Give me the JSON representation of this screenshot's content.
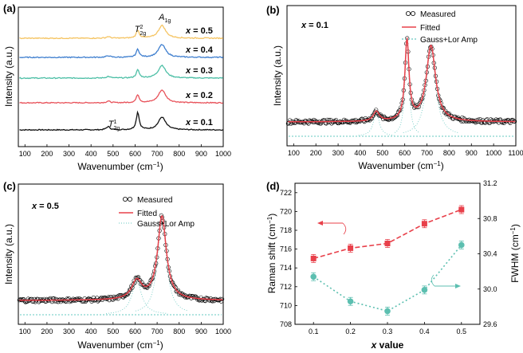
{
  "figure": {
    "background": "#ffffff"
  },
  "chart_data": [
    {
      "type": "line",
      "panel_label": "(a)",
      "xlabel": "Wavenumber (cm",
      "xlabel_sup": "−1",
      "xlabel_close": ")",
      "ylabel": "Intensity (a.u.)",
      "xlim": [
        70,
        1000
      ],
      "xticks": [
        100,
        200,
        300,
        400,
        500,
        600,
        700,
        800,
        900,
        1000
      ],
      "peak_annotations": [
        {
          "text": "A",
          "sub": "1g",
          "x": 722
        },
        {
          "text": "T",
          "sup": "2",
          "sub": "2g",
          "x": 612
        },
        {
          "text": "T",
          "sup": "1",
          "sub": "2g",
          "x": 478
        }
      ],
      "series": [
        {
          "name": "x = 0.1",
          "x_value": "0.1",
          "color": "#111111"
        },
        {
          "name": "x = 0.2",
          "x_value": "0.2",
          "color": "#e8525a"
        },
        {
          "name": "x = 0.3",
          "x_value": "0.3",
          "color": "#4dbfa6"
        },
        {
          "name": "x = 0.4",
          "x_value": "0.4",
          "color": "#3f7fcf"
        },
        {
          "name": "x = 0.5",
          "x_value": "0.5",
          "color": "#f5c462"
        }
      ]
    },
    {
      "type": "scatter",
      "panel_label": "(b)",
      "condition": "x = 0.1",
      "condition_value": "= 0.1",
      "xlabel": "Wavenumber (cm",
      "xlabel_sup": "−1",
      "xlabel_close": ")",
      "ylabel": "Intensity (a.u.)",
      "xlim": [
        70,
        1100
      ],
      "xticks": [
        100,
        200,
        300,
        400,
        500,
        600,
        700,
        800,
        900,
        1000,
        1100
      ],
      "legend": [
        "Measured",
        "Fitted",
        "Gauss+Lor Amp"
      ],
      "peaks": [
        {
          "center": 472,
          "height": 0.09,
          "width": 16
        },
        {
          "center": 610,
          "height": 0.74,
          "width": 11
        },
        {
          "center": 718,
          "height": 0.7,
          "width": 25
        }
      ],
      "colors": {
        "measured": "#000000",
        "fitted": "#e8404a",
        "components": "#66c8c0"
      }
    },
    {
      "type": "scatter",
      "panel_label": "(c)",
      "condition": "x = 0.5",
      "condition_value": "= 0.5",
      "xlabel": "Wavenumber (cm",
      "xlabel_sup": "−1",
      "xlabel_close": ")",
      "ylabel": "Intensity (a.u.)",
      "xlim": [
        70,
        1000
      ],
      "xticks": [
        100,
        200,
        300,
        400,
        500,
        600,
        700,
        800,
        900,
        1000
      ],
      "legend": [
        "Measured",
        "Fitted",
        "Gauss+Lor Amp"
      ],
      "peaks": [
        {
          "center": 608,
          "height": 0.17,
          "width": 28
        },
        {
          "center": 722,
          "height": 0.77,
          "width": 24
        }
      ],
      "colors": {
        "measured": "#000000",
        "fitted": "#e8404a",
        "components": "#66c8c0"
      }
    },
    {
      "type": "line",
      "panel_label": "(d)",
      "xlabel": "x value",
      "xlabel_var": "x",
      "xlabel_rest": " value",
      "ylabel": "Raman shift (cm",
      "ylabel_sup": "−1",
      "ylabel_close": ")",
      "y2label": "FWHM (cm",
      "y2label_sup": "−1",
      "y2label_close": ")",
      "x": [
        0.1,
        0.2,
        0.3,
        0.4,
        0.5
      ],
      "xticks": [
        "0.1",
        "0.2",
        "0.3",
        "0.4",
        "0.5"
      ],
      "xlim": [
        0.05,
        0.55
      ],
      "ylim": [
        708,
        723
      ],
      "yticks": [
        708,
        710,
        712,
        714,
        716,
        718,
        720,
        722
      ],
      "y2lim": [
        29.6,
        31.2
      ],
      "y2ticks": [
        "29.6",
        "30.0",
        "30.4",
        "30.8",
        "31.2"
      ],
      "series": [
        {
          "axis": "left",
          "values": [
            715.0,
            716.1,
            716.6,
            718.7,
            720.2
          ],
          "color": "#e8404a",
          "style": "dashed",
          "marker": "square"
        },
        {
          "axis": "right",
          "values": [
            30.14,
            29.86,
            29.75,
            29.99,
            30.5
          ],
          "color": "#5cbfb0",
          "style": "dotted",
          "marker": "circle"
        }
      ]
    }
  ]
}
